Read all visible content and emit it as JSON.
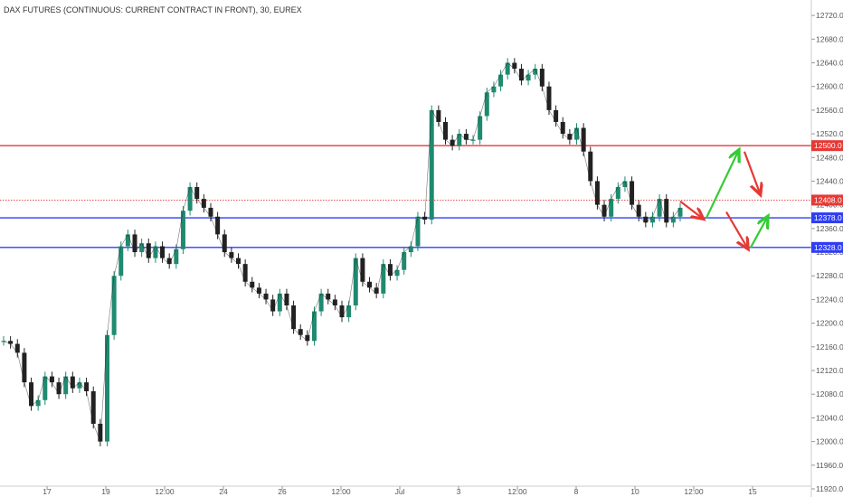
{
  "title": "DAX FUTURES (CONTINUOUS: CURRENT CONTRACT IN FRONT), 30, EUREX",
  "colors": {
    "candle_up": "#1f8a70",
    "candle_down": "#222222",
    "resistance": "#e53935",
    "support": "#2f3df5",
    "dotted": "#e53935",
    "arrow_up": "#33cc33",
    "arrow_down": "#e53935"
  },
  "chart_data": {
    "type": "line",
    "ylim": [
      11920,
      12740
    ],
    "y_ticks": [
      "11920.0",
      "11960.0",
      "12000.0",
      "12040.0",
      "12080.0",
      "12120.0",
      "12160.0",
      "12200.0",
      "12240.0",
      "12280.0",
      "12320.0",
      "12360.0",
      "12400.0",
      "12440.0",
      "12480.0",
      "12520.0",
      "12560.0",
      "12600.0",
      "12640.0",
      "12680.0",
      "12720.0"
    ],
    "x_ticks": [
      "17",
      "19",
      "12:00",
      "24",
      "26",
      "12:00",
      "Jul",
      "3",
      "12:00",
      "8",
      "10",
      "12:00",
      "15"
    ],
    "series": [
      {
        "values": [
          12170,
          12165,
          12150,
          12100,
          12060,
          12070,
          12110,
          12100,
          12080,
          12110,
          12090,
          12100,
          12085,
          12030,
          12000,
          12180,
          12280,
          12330,
          12350,
          12320,
          12335,
          12310,
          12330,
          12310,
          12300,
          12325,
          12390,
          12430,
          12410,
          12395,
          12380,
          12350,
          12320,
          12310,
          12300,
          12270,
          12260,
          12250,
          12240,
          12220,
          12250,
          12230,
          12190,
          12180,
          12170,
          12220,
          12250,
          12240,
          12230,
          12210,
          12230,
          12310,
          12270,
          12260,
          12250,
          12300,
          12280,
          12290,
          12320,
          12330,
          12380,
          12375,
          12560,
          12540,
          12510,
          12500,
          12520,
          12510,
          12510,
          12550,
          12590,
          12600,
          12620,
          12640,
          12630,
          12610,
          12620,
          12630,
          12600,
          12560,
          12540,
          12520,
          12510,
          12530,
          12490,
          12440,
          12400,
          12380,
          12410,
          12430,
          12440,
          12400,
          12380,
          12370,
          12380,
          12410,
          12370,
          12380,
          12395
        ]
      }
    ],
    "levels": [
      {
        "label": "12500.0",
        "value": 12500,
        "style": "resistance"
      },
      {
        "label": "12408.0",
        "value": 12408,
        "style": "dotted"
      },
      {
        "label": "12378.0",
        "value": 12378,
        "style": "support"
      },
      {
        "label": "12328.0",
        "value": 12328,
        "style": "support"
      }
    ],
    "projection_arrows": [
      {
        "direction": "down",
        "from": 12406,
        "to": 12378
      },
      {
        "direction": "up",
        "from": 12378,
        "to": 12490
      },
      {
        "direction": "down",
        "from": 12490,
        "to": 12420
      },
      {
        "direction": "down",
        "from": 12388,
        "to": 12328
      },
      {
        "direction": "up",
        "from": 12328,
        "to": 12378
      }
    ]
  }
}
